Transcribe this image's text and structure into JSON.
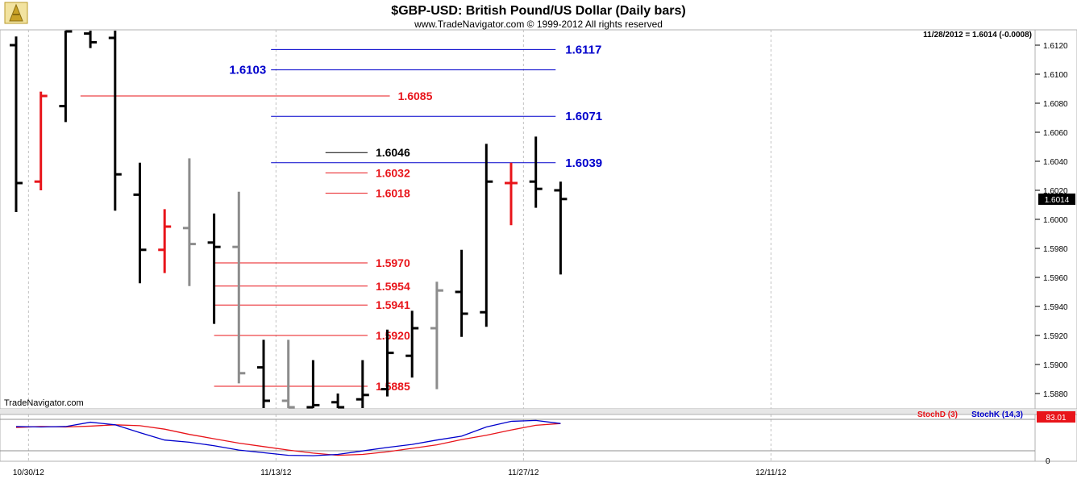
{
  "chart_data": [
    {
      "type": "bar",
      "subtype": "ohlc",
      "title": "$GBP-USD:  British Pound/US Dollar  (Daily bars)",
      "subtitle": "www.TradeNavigator.com © 1999-2012 All rights reserved",
      "watermark": "TradeNavigator.com",
      "status_text": "11/28/2012 = 1.6014 (-0.0008)",
      "last_price_label": "1.6014",
      "ylim": [
        1.587,
        1.613
      ],
      "y_ticks": [
        "1.6120",
        "1.6100",
        "1.6080",
        "1.6060",
        "1.6040",
        "1.6020",
        "1.6000",
        "1.5980",
        "1.5960",
        "1.5940",
        "1.5920",
        "1.5900",
        "1.5880"
      ],
      "x_ticks": [
        "10/30/12",
        "11/13/12",
        "11/27/12",
        "12/11/12"
      ],
      "colors": {
        "up": "#000000",
        "down_red": "#e8141a",
        "inside_gray": "#8c8c8c",
        "blue_level": "#0000cc",
        "red_level": "#e8141a",
        "black_level": "#000000",
        "grid": "#c0c0c0"
      },
      "bars": [
        {
          "h": 1.6126,
          "l": 1.6005,
          "o": 1.612,
          "c": 1.6025,
          "color": "black"
        },
        {
          "h": 1.6088,
          "l": 1.602,
          "o": 1.6026,
          "c": 1.6085,
          "color": "red"
        },
        {
          "h": 1.613,
          "l": 1.6067,
          "o": 1.6078,
          "c": 1.613,
          "color": "black"
        },
        {
          "h": 1.613,
          "l": 1.6118,
          "o": 1.6128,
          "c": 1.6122,
          "color": "black"
        },
        {
          "h": 1.613,
          "l": 1.6006,
          "o": 1.6125,
          "c": 1.6031,
          "color": "black"
        },
        {
          "h": 1.6039,
          "l": 1.5956,
          "o": 1.6017,
          "c": 1.5979,
          "color": "black"
        },
        {
          "h": 1.6007,
          "l": 1.5963,
          "o": 1.5979,
          "c": 1.5995,
          "color": "red"
        },
        {
          "h": 1.6042,
          "l": 1.5954,
          "o": 1.5994,
          "c": 1.5983,
          "color": "gray"
        },
        {
          "h": 1.6004,
          "l": 1.5928,
          "o": 1.5984,
          "c": 1.5981,
          "color": "black"
        },
        {
          "h": 1.6019,
          "l": 1.5887,
          "o": 1.5981,
          "c": 1.5894,
          "color": "gray"
        },
        {
          "h": 1.5917,
          "l": 1.587,
          "o": 1.5898,
          "c": 1.5875,
          "color": "black"
        },
        {
          "h": 1.5917,
          "l": 1.587,
          "o": 1.5875,
          "c": 1.587,
          "color": "gray"
        },
        {
          "h": 1.5903,
          "l": 1.587,
          "o": 1.587,
          "c": 1.5872,
          "color": "black"
        },
        {
          "h": 1.588,
          "l": 1.587,
          "o": 1.5874,
          "c": 1.587,
          "color": "black"
        },
        {
          "h": 1.5903,
          "l": 1.587,
          "o": 1.5876,
          "c": 1.5879,
          "color": "black"
        },
        {
          "h": 1.5924,
          "l": 1.5878,
          "o": 1.5883,
          "c": 1.5908,
          "color": "black"
        },
        {
          "h": 1.5937,
          "l": 1.5891,
          "o": 1.5906,
          "c": 1.5925,
          "color": "black"
        },
        {
          "h": 1.5957,
          "l": 1.5883,
          "o": 1.5925,
          "c": 1.5951,
          "color": "gray"
        },
        {
          "h": 1.5979,
          "l": 1.5919,
          "o": 1.595,
          "c": 1.5935,
          "color": "black"
        },
        {
          "h": 1.6052,
          "l": 1.5926,
          "o": 1.5936,
          "c": 1.6026,
          "color": "black"
        },
        {
          "h": 1.6039,
          "l": 1.5996,
          "o": 1.6025,
          "c": 1.6025,
          "color": "red"
        },
        {
          "h": 1.6057,
          "l": 1.6008,
          "o": 1.6026,
          "c": 1.6021,
          "color": "black"
        },
        {
          "h": 1.6026,
          "l": 1.5962,
          "o": 1.602,
          "c": 1.6014,
          "color": "black"
        }
      ],
      "levels": [
        {
          "value": 1.6117,
          "label": "1.6117",
          "color": "blue",
          "x_from": 10.3,
          "x_to": 21.8,
          "label_side": "right"
        },
        {
          "value": 1.6103,
          "label": "1.6103",
          "color": "blue",
          "x_from": 10.3,
          "x_to": 21.8,
          "label_side": "left"
        },
        {
          "value": 1.6085,
          "label": "1.6085",
          "color": "red",
          "x_from": 2.6,
          "x_to": 15.1,
          "label_side": "right"
        },
        {
          "value": 1.6071,
          "label": "1.6071",
          "color": "blue",
          "x_from": 10.3,
          "x_to": 21.8,
          "label_side": "right"
        },
        {
          "value": 1.6046,
          "label": "1.6046",
          "color": "black",
          "x_from": 12.5,
          "x_to": 14.2,
          "label_side": "right"
        },
        {
          "value": 1.6039,
          "label": "1.6039",
          "color": "blue",
          "x_from": 10.3,
          "x_to": 21.8,
          "label_side": "right"
        },
        {
          "value": 1.6032,
          "label": "1.6032",
          "color": "red",
          "x_from": 12.5,
          "x_to": 14.2,
          "label_side": "right"
        },
        {
          "value": 1.6018,
          "label": "1.6018",
          "color": "red",
          "x_from": 12.5,
          "x_to": 14.2,
          "label_side": "right"
        },
        {
          "value": 1.597,
          "label": "1.5970",
          "color": "red",
          "x_from": 8.0,
          "x_to": 14.2,
          "label_side": "right"
        },
        {
          "value": 1.5954,
          "label": "1.5954",
          "color": "red",
          "x_from": 8.0,
          "x_to": 14.2,
          "label_side": "right"
        },
        {
          "value": 1.5941,
          "label": "1.5941",
          "color": "red",
          "x_from": 8.0,
          "x_to": 14.2,
          "label_side": "right"
        },
        {
          "value": 1.592,
          "label": "1.5920",
          "color": "red",
          "x_from": 8.0,
          "x_to": 14.2,
          "label_side": "right"
        },
        {
          "value": 1.5885,
          "label": "1.5885",
          "color": "red",
          "x_from": 8.0,
          "x_to": 14.2,
          "label_side": "right"
        }
      ]
    },
    {
      "type": "line",
      "legend": [
        {
          "name": "StochD (3)",
          "color": "#e8141a"
        },
        {
          "name": "StochK (14,3)",
          "color": "#0000cc"
        }
      ],
      "last_value_label": "83.01",
      "y_tick": "0",
      "ylim": [
        0,
        100
      ],
      "series": [
        {
          "name": "StochD (3)",
          "values": [
            74,
            76,
            75,
            77,
            80,
            78,
            70,
            58,
            48,
            38,
            30,
            22,
            15,
            10,
            12,
            18,
            26,
            34,
            46,
            56,
            68,
            79,
            83
          ]
        },
        {
          "name": "StochK (14,3)",
          "values": [
            76,
            75,
            76,
            86,
            80,
            62,
            45,
            40,
            32,
            22,
            16,
            10,
            9,
            12,
            20,
            28,
            35,
            45,
            54,
            75,
            88,
            90,
            83
          ]
        }
      ]
    }
  ]
}
